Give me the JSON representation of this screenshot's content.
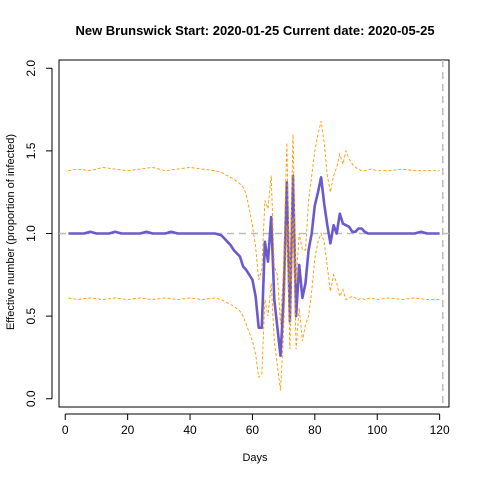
{
  "chart_data": {
    "type": "line",
    "title": "New Brunswick Start:  2020-01-25   Current date:  2020-05-25",
    "xlabel": "Days",
    "ylabel": "Effective number (proportion of infected)",
    "xlim": [
      -2,
      123
    ],
    "ylim": [
      -0.05,
      2.05
    ],
    "x_ticks": [
      0,
      20,
      40,
      60,
      80,
      100,
      120
    ],
    "x_tick_labels": [
      "0",
      "20",
      "40",
      "60",
      "80",
      "100",
      "120"
    ],
    "y_ticks": [
      0.0,
      0.5,
      1.0,
      1.5,
      2.0
    ],
    "y_tick_labels": [
      "0.0",
      "0.5",
      "1.0",
      "1.5",
      "2.0"
    ],
    "reference_hline": 1.0,
    "reference_vline": 121,
    "colors": {
      "median": "#6a5acd",
      "bounds": "#ff9900",
      "reference": "#bbbbbb"
    },
    "series": [
      {
        "role": "median",
        "x": [
          1,
          2,
          4,
          6,
          8,
          10,
          12,
          14,
          16,
          18,
          20,
          22,
          24,
          26,
          28,
          30,
          32,
          34,
          36,
          38,
          40,
          42,
          44,
          46,
          48,
          50,
          51,
          52,
          53,
          54,
          55,
          56,
          57,
          58,
          59,
          60,
          61,
          62,
          63,
          64,
          65,
          66,
          67,
          68,
          69,
          70,
          71,
          72,
          73,
          74,
          75,
          76,
          77,
          78,
          79,
          80,
          81,
          82,
          83,
          84,
          85,
          86,
          87,
          88,
          89,
          90,
          91,
          92,
          93,
          94,
          95,
          96,
          97,
          98,
          99,
          100,
          102,
          104,
          106,
          108,
          110,
          112,
          114,
          116,
          118,
          120
        ],
        "y": [
          1.0,
          1.0,
          1.0,
          1.0,
          1.01,
          1.0,
          1.0,
          1.0,
          1.01,
          1.0,
          1.0,
          1.0,
          1.0,
          1.01,
          1.0,
          1.0,
          1.0,
          1.01,
          1.0,
          1.0,
          1.0,
          1.0,
          1.0,
          1.0,
          1.0,
          0.99,
          0.97,
          0.95,
          0.93,
          0.9,
          0.88,
          0.86,
          0.8,
          0.78,
          0.75,
          0.72,
          0.62,
          0.43,
          0.43,
          0.95,
          0.83,
          1.1,
          0.6,
          0.43,
          0.26,
          0.6,
          1.31,
          0.47,
          1.35,
          0.5,
          0.81,
          0.61,
          0.7,
          0.9,
          1.0,
          1.17,
          1.25,
          1.34,
          1.18,
          1.05,
          0.94,
          1.05,
          1.0,
          1.12,
          1.06,
          1.05,
          1.04,
          1.01,
          1.01,
          1.03,
          1.03,
          1.01,
          1.0,
          1.0,
          1.0,
          1.0,
          1.0,
          1.0,
          1.0,
          1.0,
          1.0,
          1.0,
          1.01,
          1.0,
          1.0,
          1.0
        ]
      },
      {
        "role": "upper_bound",
        "x": [
          1,
          4,
          8,
          12,
          16,
          20,
          24,
          28,
          32,
          36,
          40,
          44,
          48,
          50,
          52,
          54,
          56,
          57,
          58,
          59,
          60,
          61,
          62,
          63,
          64,
          65,
          66,
          67,
          68,
          69,
          70,
          71,
          72,
          73,
          74,
          75,
          76,
          77,
          78,
          79,
          80,
          81,
          82,
          83,
          84,
          85,
          86,
          87,
          88,
          89,
          90,
          91,
          92,
          93,
          94,
          95,
          96,
          98,
          100,
          104,
          108,
          112,
          116,
          120
        ],
        "y": [
          1.38,
          1.39,
          1.38,
          1.4,
          1.39,
          1.38,
          1.39,
          1.4,
          1.38,
          1.39,
          1.4,
          1.39,
          1.38,
          1.37,
          1.35,
          1.33,
          1.3,
          1.28,
          1.24,
          1.15,
          1.05,
          0.92,
          0.72,
          0.78,
          1.2,
          1.15,
          1.35,
          0.8,
          0.75,
          0.45,
          0.8,
          1.55,
          0.7,
          1.6,
          0.7,
          1.0,
          0.9,
          0.9,
          1.2,
          1.35,
          1.5,
          1.6,
          1.68,
          1.55,
          1.35,
          1.25,
          1.35,
          1.4,
          1.48,
          1.42,
          1.5,
          1.45,
          1.42,
          1.4,
          1.39,
          1.38,
          1.38,
          1.39,
          1.38,
          1.38,
          1.39,
          1.38,
          1.38,
          1.38
        ]
      },
      {
        "role": "lower_bound",
        "x": [
          1,
          4,
          8,
          12,
          16,
          20,
          24,
          28,
          32,
          36,
          40,
          44,
          48,
          50,
          52,
          54,
          56,
          57,
          58,
          59,
          60,
          61,
          62,
          63,
          64,
          65,
          66,
          67,
          68,
          69,
          70,
          71,
          72,
          73,
          74,
          75,
          76,
          77,
          78,
          79,
          80,
          81,
          82,
          83,
          84,
          85,
          86,
          87,
          88,
          89,
          90,
          91,
          92,
          93,
          94,
          95,
          96,
          98,
          100,
          104,
          108,
          112,
          116,
          120
        ],
        "y": [
          0.61,
          0.6,
          0.61,
          0.6,
          0.61,
          0.6,
          0.61,
          0.6,
          0.61,
          0.6,
          0.61,
          0.6,
          0.61,
          0.6,
          0.58,
          0.56,
          0.53,
          0.5,
          0.45,
          0.4,
          0.35,
          0.27,
          0.13,
          0.15,
          0.6,
          0.5,
          0.7,
          0.35,
          0.2,
          0.05,
          0.4,
          1.05,
          0.3,
          1.1,
          0.3,
          0.55,
          0.35,
          0.45,
          0.5,
          0.65,
          0.85,
          0.95,
          1.0,
          0.95,
          0.8,
          0.65,
          0.75,
          0.7,
          0.62,
          0.66,
          0.6,
          0.61,
          0.62,
          0.61,
          0.6,
          0.61,
          0.6,
          0.61,
          0.6,
          0.61,
          0.6,
          0.61,
          0.6,
          0.6
        ]
      }
    ]
  }
}
